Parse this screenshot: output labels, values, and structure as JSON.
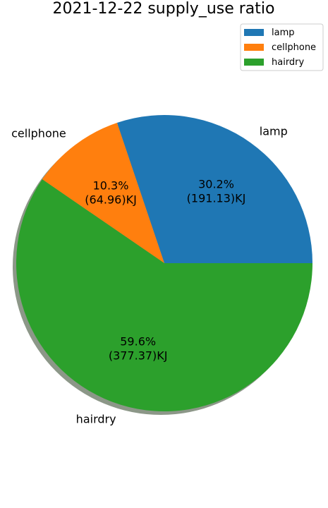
{
  "chart_data": {
    "type": "pie",
    "title": "2021-12-22 supply_use ratio",
    "start_angle_deg": 0,
    "direction": "counterclockwise",
    "shadow": true,
    "legend_position": "top-right",
    "slices": [
      {
        "name": "lamp",
        "value": 191.13,
        "percent_label": "30.2%",
        "value_label": "(191.13)KJ",
        "color": "#1f77b4"
      },
      {
        "name": "cellphone",
        "value": 64.96,
        "percent_label": "10.3%",
        "value_label": "(64.96)KJ",
        "color": "#ff7f0e"
      },
      {
        "name": "hairdry",
        "value": 377.37,
        "percent_label": "59.6%",
        "value_label": "(377.37)KJ",
        "color": "#2ca02c"
      }
    ]
  }
}
